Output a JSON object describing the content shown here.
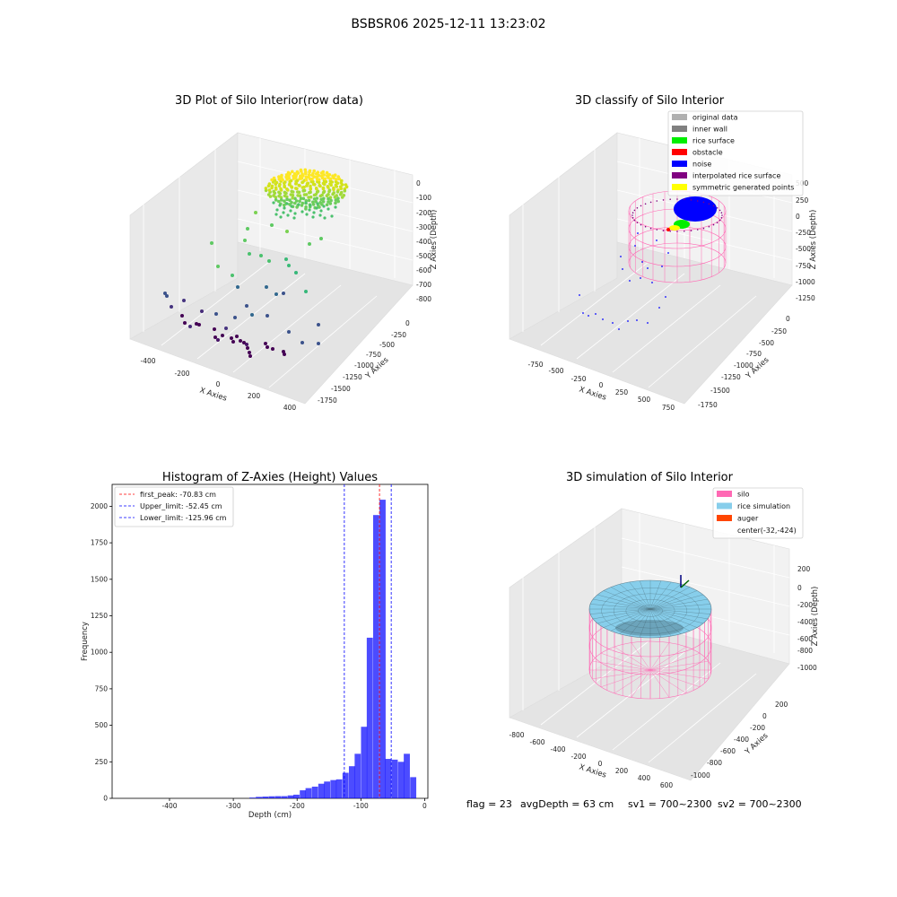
{
  "figure": {
    "suptitle": "BSBSR06 2025-12-11 13:23:02",
    "footer": {
      "flag": "flag = 23",
      "avg_depth": "avgDepth = 63 cm",
      "sv1": "sv1 = 700~2300",
      "sv2": "sv2 = 700~2300"
    }
  },
  "panels": {
    "raw": {
      "title": "3D Plot of Silo Interior(row data)",
      "x_label": "X Axies",
      "y_label": "Y Axies",
      "z_label": "Z Axies (Depth)",
      "x_ticks": [
        "-400",
        "-200",
        "0",
        "200",
        "400"
      ],
      "y_ticks": [
        "0",
        "-250",
        "-500",
        "-750",
        "-1000",
        "-1250",
        "-1500",
        "-1750"
      ],
      "z_ticks": [
        "0",
        "-100",
        "-200",
        "-300",
        "-400",
        "-500",
        "-600",
        "-700",
        "-800"
      ],
      "colormap": "viridis"
    },
    "classify": {
      "title": "3D classify of Silo Interior",
      "x_label": "X Axies",
      "y_label": "Y Axies",
      "z_label": "Z Axies (Depth)",
      "x_ticks": [
        "-750",
        "-500",
        "-250",
        "0",
        "250",
        "500",
        "750"
      ],
      "y_ticks": [
        "0",
        "-250",
        "-500",
        "-750",
        "-1000",
        "-1250",
        "-1500",
        "-1750"
      ],
      "z_ticks": [
        "500",
        "250",
        "0",
        "-250",
        "-500",
        "-750",
        "-1000",
        "-1250"
      ],
      "legend": [
        {
          "label": "original data",
          "color": "#b0b0b0"
        },
        {
          "label": "inner wall",
          "color": "#808080"
        },
        {
          "label": "rice surface",
          "color": "#00ee00"
        },
        {
          "label": "obstacle",
          "color": "#ff0000"
        },
        {
          "label": "noise",
          "color": "#0000ff"
        },
        {
          "label": "interpolated rice surface",
          "color": "#800080"
        },
        {
          "label": "symmetric generated points",
          "color": "#ffff00"
        }
      ]
    },
    "simulation": {
      "title": "3D simulation of Silo Interior",
      "x_label": "X Axies",
      "y_label": "Y Axies",
      "z_label": "Z Axies (Depth)",
      "x_ticks": [
        "-800",
        "-600",
        "-400",
        "-200",
        "0",
        "200",
        "400",
        "600"
      ],
      "y_ticks": [
        "200",
        "0",
        "-200",
        "-400",
        "-600",
        "-800",
        "-1000"
      ],
      "z_ticks": [
        "200",
        "0",
        "-200",
        "-400",
        "-600",
        "-800",
        "-1000"
      ],
      "legend": [
        {
          "label": "silo",
          "color": "#ff69b4"
        },
        {
          "label": "rice simulation",
          "color": "#87ceeb"
        },
        {
          "label": "auger",
          "color": "#ff4500"
        },
        {
          "label": "center(-32,-424)",
          "color": ""
        }
      ]
    }
  },
  "chart_data": {
    "type": "bar",
    "title": "Histogram of Z-Axies (Height) Values",
    "xlabel": "Depth (cm)",
    "ylabel": "Frequency",
    "xlim": [
      -490,
      5
    ],
    "ylim": [
      0,
      2150
    ],
    "x_ticks": [
      -400,
      -300,
      -200,
      -100,
      0
    ],
    "y_ticks": [
      0,
      250,
      500,
      750,
      1000,
      1250,
      1500,
      1750,
      2000
    ],
    "bar_color": "#0000ff",
    "bin_width": 9.6,
    "bins": [
      {
        "x": -270,
        "value": 5
      },
      {
        "x": -260,
        "value": 10
      },
      {
        "x": -250,
        "value": 12
      },
      {
        "x": -240,
        "value": 14
      },
      {
        "x": -230,
        "value": 15
      },
      {
        "x": -220,
        "value": 15
      },
      {
        "x": -210,
        "value": 20
      },
      {
        "x": -201,
        "value": 25
      },
      {
        "x": -191,
        "value": 55
      },
      {
        "x": -182,
        "value": 70
      },
      {
        "x": -172,
        "value": 80
      },
      {
        "x": -162,
        "value": 100
      },
      {
        "x": -153,
        "value": 115
      },
      {
        "x": -143,
        "value": 125
      },
      {
        "x": -134,
        "value": 130
      },
      {
        "x": -124,
        "value": 175
      },
      {
        "x": -114,
        "value": 220
      },
      {
        "x": -105,
        "value": 305
      },
      {
        "x": -95,
        "value": 490
      },
      {
        "x": -86,
        "value": 1100
      },
      {
        "x": -76,
        "value": 1940
      },
      {
        "x": -66,
        "value": 2045
      },
      {
        "x": -57,
        "value": 270
      },
      {
        "x": -47,
        "value": 265
      },
      {
        "x": -37,
        "value": 250
      },
      {
        "x": -28,
        "value": 305
      },
      {
        "x": -18,
        "value": 145
      }
    ],
    "lines": [
      {
        "label": "first_peak: -70.83 cm",
        "x": -70.83,
        "color": "#ff0000"
      },
      {
        "label": "Upper_limit: -52.45 cm",
        "x": -52.45,
        "color": "#0000ff"
      },
      {
        "label": "Lower_limit: -125.96 cm",
        "x": -125.96,
        "color": "#0000ff"
      }
    ],
    "legend_position": "upper-left"
  }
}
